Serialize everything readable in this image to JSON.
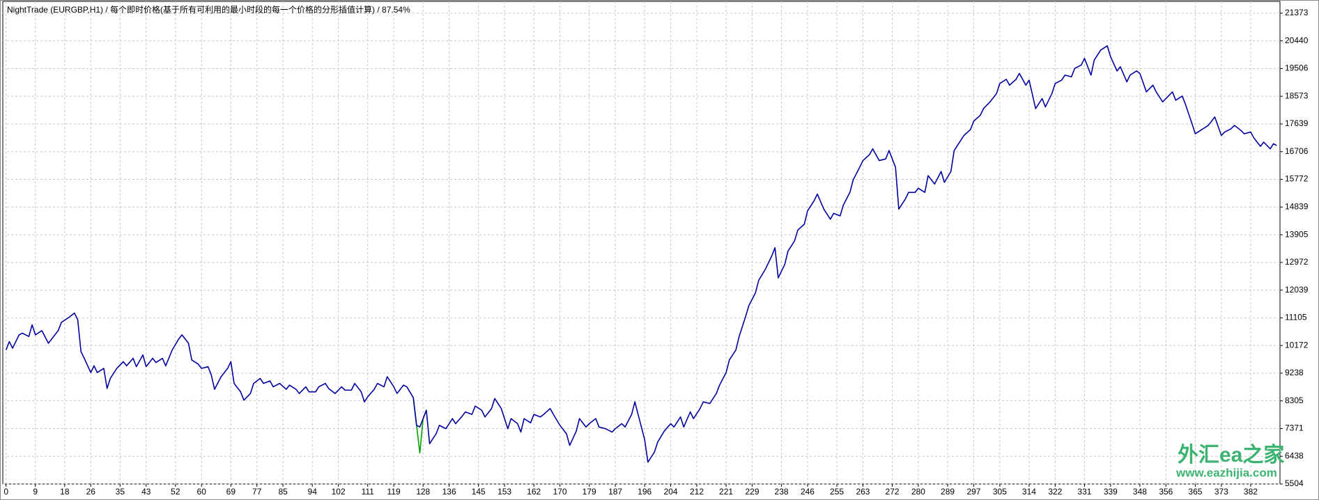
{
  "chart_data": {
    "type": "line",
    "title": "NightTrade (EURGBP,H1) / 每个即时价格(基于所有可利用的最小时段的每一个价格的分形插值计算) / 87.54%",
    "annotations": [
      "外汇ea之家",
      "www.eazhijia.com"
    ],
    "xlim": [
      -1,
      391
    ],
    "ylim": [
      5504,
      21770
    ],
    "grid": true,
    "xticks": [
      0,
      9,
      18,
      26,
      35,
      43,
      52,
      60,
      69,
      77,
      85,
      94,
      102,
      111,
      119,
      128,
      136,
      145,
      153,
      162,
      170,
      179,
      187,
      196,
      204,
      212,
      221,
      229,
      238,
      246,
      255,
      263,
      272,
      280,
      289,
      297,
      305,
      314,
      322,
      331,
      339,
      348,
      356,
      365,
      373,
      382
    ],
    "yticks": [
      5504,
      6438,
      7371,
      8305,
      9238,
      10172,
      11105,
      12039,
      12972,
      13905,
      14839,
      15772,
      16706,
      17639,
      18573,
      19506,
      20440,
      21373
    ],
    "x": [
      0,
      1,
      2,
      4,
      5,
      7,
      8,
      9,
      11,
      13,
      14,
      16,
      17,
      19,
      21,
      22,
      23,
      24,
      26,
      27,
      28,
      30,
      31,
      32,
      34,
      36,
      37,
      39,
      40,
      42,
      43,
      45,
      46,
      48,
      49,
      51,
      53,
      54,
      56,
      57,
      59,
      60,
      62,
      63,
      64,
      66,
      68,
      69,
      70,
      72,
      73,
      75,
      76,
      78,
      79,
      81,
      82,
      84,
      86,
      87,
      89,
      90,
      92,
      93,
      95,
      96,
      98,
      99,
      101,
      103,
      104,
      106,
      107,
      109,
      110,
      111,
      113,
      114,
      116,
      117,
      119,
      120,
      122,
      123,
      125,
      126,
      127,
      128,
      129,
      130,
      132,
      133,
      135,
      137,
      138,
      140,
      141,
      143,
      144,
      146,
      147,
      149,
      150,
      152,
      154,
      155,
      157,
      158,
      159,
      161,
      162,
      164,
      165,
      167,
      168,
      170,
      172,
      173,
      175,
      176,
      178,
      179,
      181,
      182,
      184,
      186,
      187,
      189,
      190,
      192,
      193,
      194,
      196,
      197,
      199,
      200,
      202,
      204,
      205,
      207,
      208,
      210,
      211,
      213,
      214,
      216,
      218,
      219,
      221,
      222,
      224,
      225,
      227,
      228,
      230,
      231,
      233,
      235,
      236,
      237,
      239,
      240,
      242,
      243,
      245,
      246,
      248,
      249,
      251,
      253,
      254,
      256,
      257,
      259,
      260,
      262,
      263,
      265,
      266,
      268,
      270,
      271,
      273,
      274,
      276,
      277,
      279,
      280,
      282,
      283,
      285,
      287,
      288,
      290,
      291,
      293,
      294,
      296,
      297,
      299,
      300,
      302,
      304,
      305,
      307,
      308,
      310,
      311,
      313,
      314,
      316,
      318,
      319,
      321,
      322,
      324,
      325,
      327,
      328,
      330,
      331,
      333,
      334,
      336,
      338,
      339,
      341,
      342,
      344,
      345,
      347,
      348,
      350,
      352,
      353,
      355,
      356,
      358,
      359,
      361,
      362,
      364,
      365,
      367,
      369,
      370,
      371,
      373,
      374,
      376,
      377,
      379,
      380,
      382,
      383,
      385,
      386,
      388,
      389,
      390
    ],
    "series": [
      {
        "color": "#00a000",
        "x": [
          125,
          126,
          127,
          128,
          129
        ],
        "values": [
          8413,
          7481,
          6550,
          7707,
          7989
        ]
      },
      {
        "color": "#0000a0",
        "values": [
          10022,
          10305,
          10080,
          10530,
          10587,
          10475,
          10870,
          10530,
          10672,
          10248,
          10390,
          10672,
          10954,
          11096,
          11265,
          11040,
          9966,
          9740,
          9260,
          9486,
          9260,
          9401,
          8723,
          9062,
          9401,
          9627,
          9486,
          9740,
          9458,
          9853,
          9458,
          9740,
          9599,
          9740,
          9486,
          10022,
          10390,
          10530,
          10248,
          9683,
          9542,
          9401,
          9458,
          9175,
          8695,
          9119,
          9401,
          9627,
          8893,
          8610,
          8328,
          8554,
          8893,
          9062,
          8893,
          8977,
          8780,
          8893,
          8695,
          8836,
          8695,
          8554,
          8780,
          8610,
          8610,
          8780,
          8893,
          8723,
          8554,
          8780,
          8667,
          8667,
          8893,
          8610,
          8272,
          8441,
          8695,
          8893,
          8780,
          9119,
          8780,
          8554,
          8836,
          8780,
          8413,
          7481,
          7424,
          7707,
          7989,
          6860,
          7198,
          7481,
          7368,
          7707,
          7537,
          7791,
          7933,
          7848,
          8130,
          7989,
          7763,
          8046,
          8385,
          8046,
          7368,
          7707,
          7537,
          7255,
          7707,
          7565,
          7848,
          7763,
          7848,
          8046,
          7848,
          7481,
          7198,
          6803,
          7283,
          7707,
          7424,
          7537,
          7707,
          7424,
          7368,
          7255,
          7368,
          7537,
          7424,
          7848,
          8272,
          7848,
          7001,
          6238,
          6577,
          6916,
          7283,
          7537,
          7424,
          7763,
          7424,
          7933,
          7707,
          8046,
          8272,
          8215,
          8554,
          8836,
          9260,
          9683,
          10022,
          10474,
          11152,
          11519,
          11943,
          12366,
          12733,
          13185,
          13468,
          12451,
          12903,
          13355,
          13693,
          14061,
          14259,
          14710,
          15049,
          15275,
          14767,
          14428,
          14626,
          14541,
          14908,
          15332,
          15755,
          16179,
          16405,
          16603,
          16800,
          16405,
          16461,
          16744,
          16179,
          14767,
          15106,
          15332,
          15332,
          15473,
          15332,
          15896,
          15614,
          16037,
          15670,
          16037,
          16744,
          17082,
          17252,
          17450,
          17732,
          17930,
          18156,
          18382,
          18664,
          19003,
          19144,
          18946,
          19144,
          19342,
          18946,
          19116,
          18156,
          18495,
          18213,
          18664,
          19003,
          19116,
          19285,
          19229,
          19511,
          19624,
          19850,
          19285,
          19793,
          20132,
          20273,
          19906,
          19426,
          19567,
          19059,
          19285,
          19426,
          19341,
          18720,
          18946,
          18720,
          18382,
          18495,
          18720,
          18438,
          18580,
          18297,
          17647,
          17309,
          17450,
          17591,
          17732,
          17873,
          17252,
          17365,
          17478,
          17591,
          17422,
          17309,
          17365,
          17167,
          16885,
          17026,
          16800,
          16970,
          16913
        ]
      }
    ]
  }
}
